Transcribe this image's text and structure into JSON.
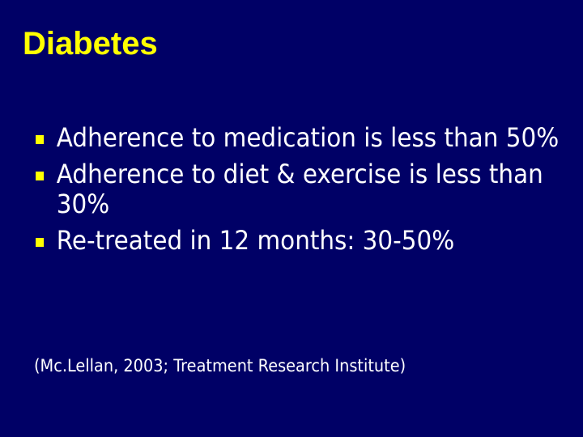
{
  "title": "Diabetes",
  "bullets": [
    "Adherence to medication is less than 50%",
    "Adherence to diet & exercise is less than 30%",
    "Re-treated in 12 months: 30-50%"
  ],
  "citation": "(Mc.Lellan, 2003; Treatment Research Institute)"
}
